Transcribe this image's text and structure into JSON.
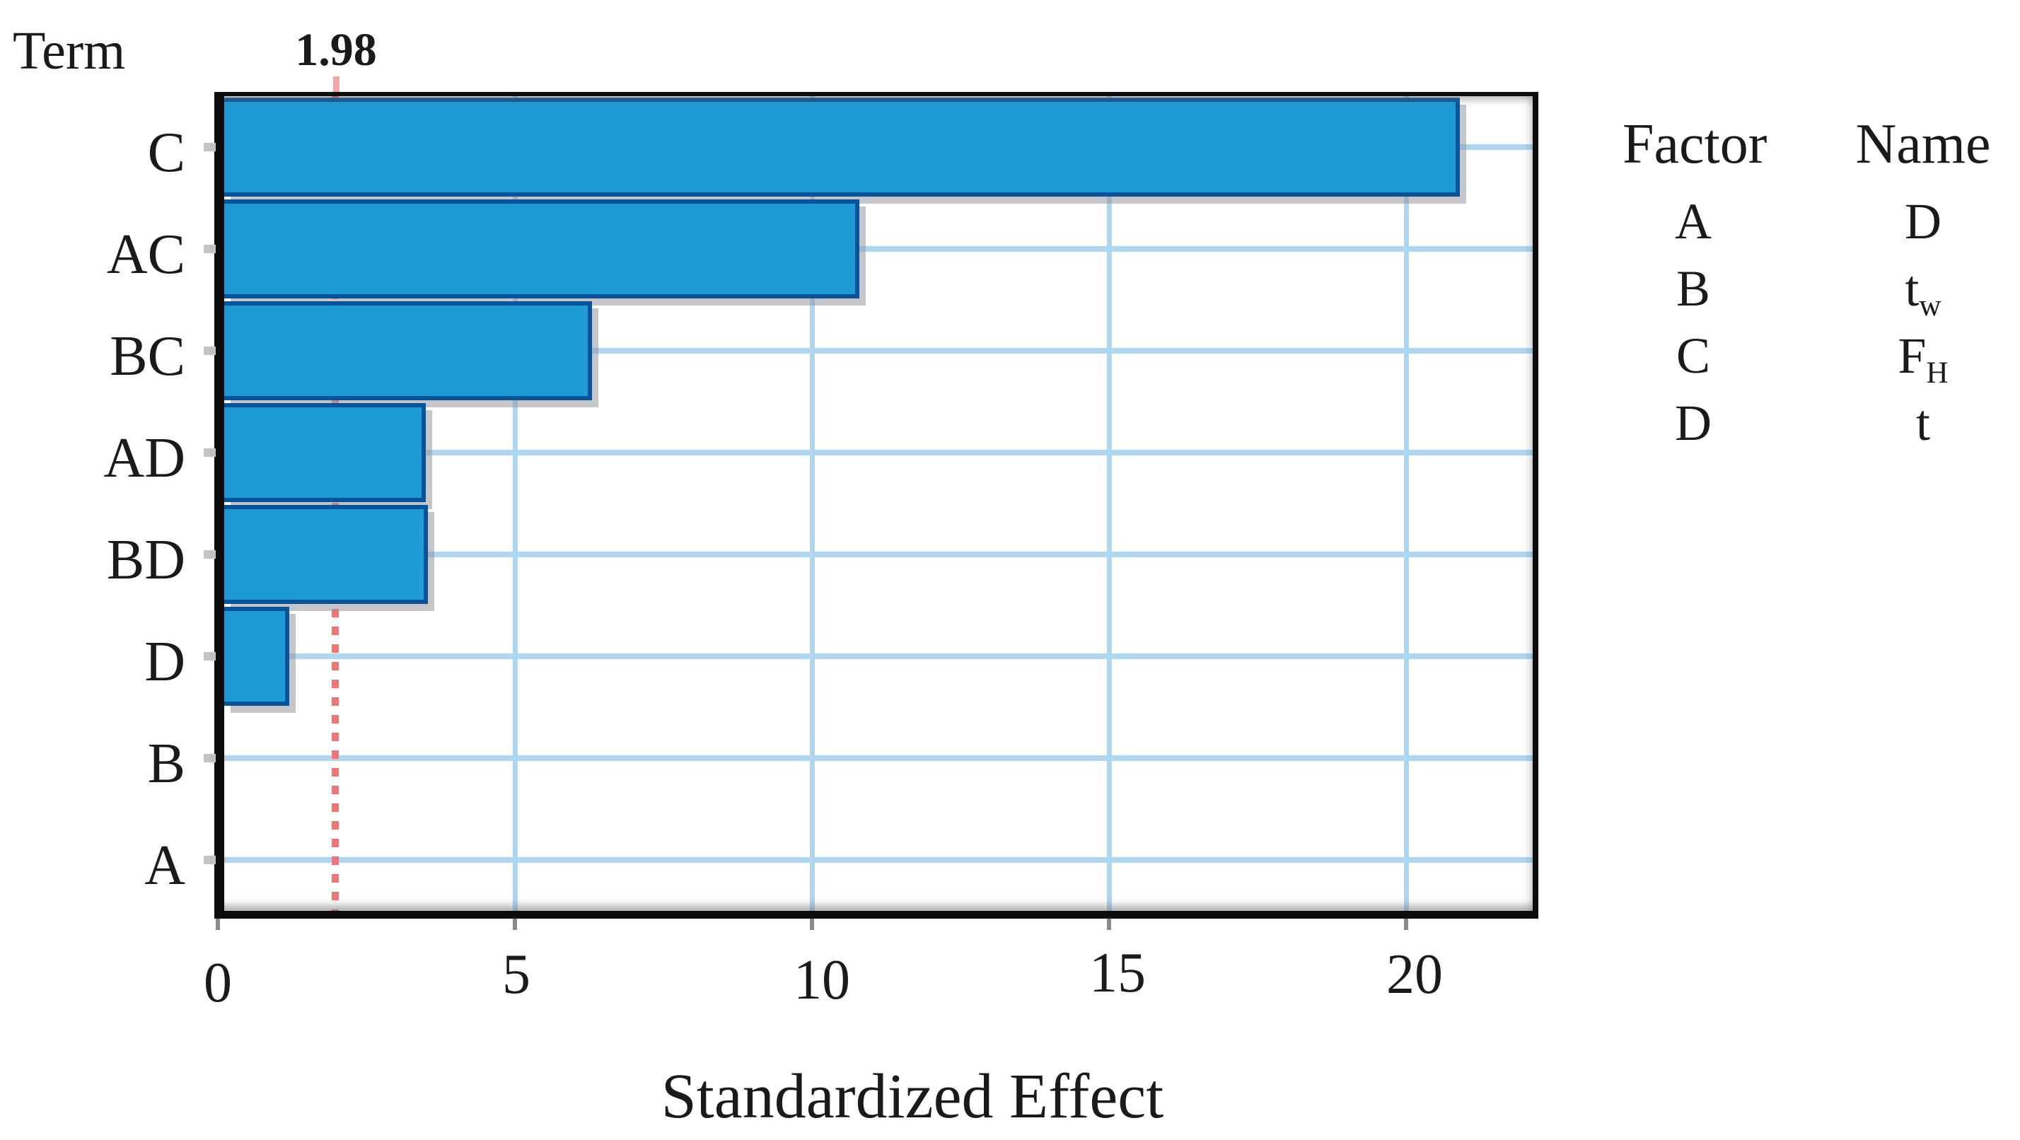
{
  "page": {
    "background": "#ffffff"
  },
  "header": {
    "term_label": "Term",
    "reference_value_label": "1.98"
  },
  "chart_data": {
    "type": "bar",
    "orientation": "horizontal",
    "title": "",
    "ylabel": "Term",
    "xlabel": "Standardized Effect",
    "categories": [
      "C",
      "AC",
      "BC",
      "AD",
      "BD",
      "D",
      "B",
      "A"
    ],
    "values": [
      20.9,
      10.8,
      6.3,
      3.5,
      3.54,
      1.2,
      0,
      0
    ],
    "xticks": [
      "0",
      "5",
      "10",
      "15",
      "20"
    ],
    "xtick_values": [
      0,
      5,
      10,
      15,
      20
    ],
    "xlim": [
      0,
      22
    ],
    "grid": "on",
    "legend_position": "right",
    "reference_line": {
      "value": 1.98,
      "label": "1.98",
      "color": "#f21b1b",
      "style": "dotted"
    },
    "colors": {
      "bar_fill": "#1e9ad7",
      "bar_border": "#05549b",
      "gridline": "#aed6f1",
      "reference_dash": "#f07575",
      "axis": "#0d0d0d"
    }
  },
  "legend": {
    "headers": [
      "Factor",
      "Name"
    ],
    "rows": [
      {
        "factor": "A",
        "name_base": "D",
        "name_sub": ""
      },
      {
        "factor": "B",
        "name_base": "t",
        "name_sub": "w"
      },
      {
        "factor": "C",
        "name_base": "F",
        "name_sub": "H"
      },
      {
        "factor": "D",
        "name_base": "t",
        "name_sub": ""
      }
    ]
  }
}
